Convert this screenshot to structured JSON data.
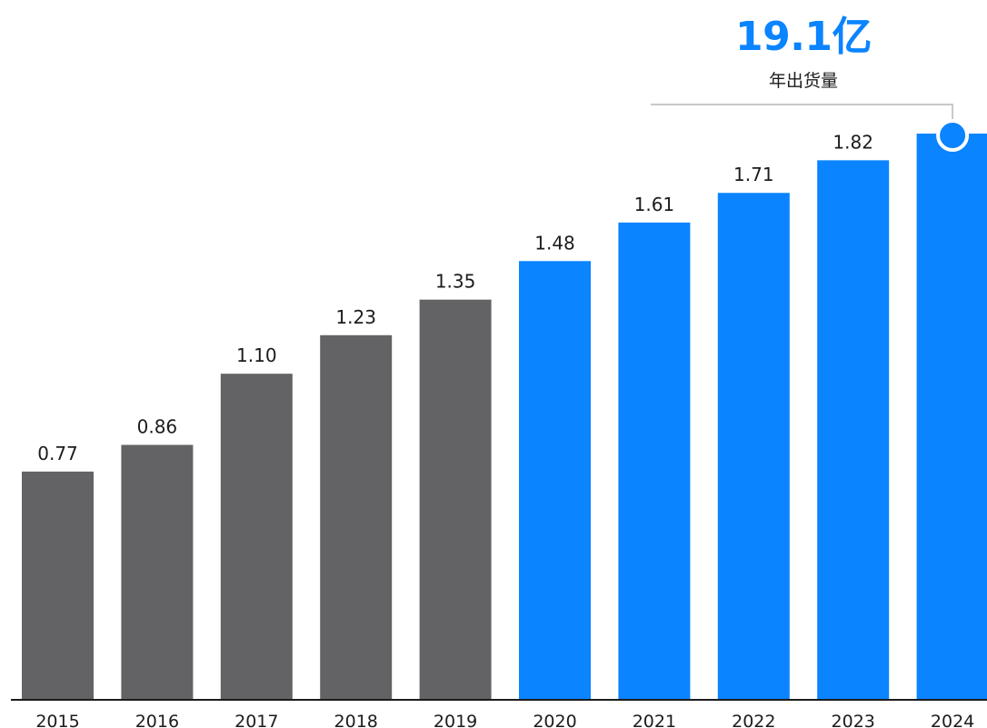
{
  "headline": {
    "value": "19.1亿",
    "label": "年出货量"
  },
  "colors": {
    "historical": "#636366",
    "recent": "#0a84ff",
    "baseline": "#1c1c1e",
    "connector": "#c7c7cc"
  },
  "chart_data": {
    "type": "bar",
    "categories": [
      "2015",
      "2016",
      "2017",
      "2018",
      "2019",
      "2020",
      "2021",
      "2022",
      "2023",
      "2024"
    ],
    "values": [
      0.77,
      0.86,
      1.1,
      1.23,
      1.35,
      1.48,
      1.61,
      1.71,
      1.82,
      1.91
    ],
    "value_labels": [
      "0.77",
      "0.86",
      "1.10",
      "1.23",
      "1.35",
      "1.48",
      "1.61",
      "1.71",
      "1.82",
      ""
    ],
    "highlight_from_index": 5,
    "highlight_marker_index": 9,
    "ylim": [
      0,
      1.91
    ],
    "grid": false,
    "legend": "none",
    "title": "",
    "xlabel": "",
    "ylabel": ""
  }
}
